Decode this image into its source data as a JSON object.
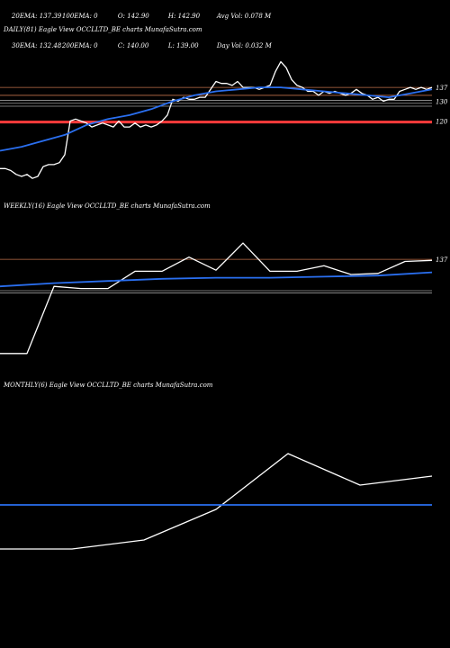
{
  "stats": {
    "ema20": "20EMA: 137.39",
    "ema100": "100EMA: 0",
    "open": "O: 142.90",
    "high": "H: 142.90",
    "avgvol": "Avg Vol: 0.078 M",
    "ema30": "30EMA: 132.48",
    "ema200": "200EMA: 0",
    "close": "C: 140.00",
    "low": "L: 139.00",
    "dayvol": "Day Vol: 0.032 M"
  },
  "panels": {
    "daily": "DAILY(81) Eagle  View  OCCLLTD_BE charts MunafaSutra.com",
    "weekly": "WEEKLY(16) Eagle  View  OCCLLTD_BE charts MunafaSutra.com",
    "monthly": "MONTHLY(6) Eagle  View  OCCLLTD_BE charts MunafaSutra.com"
  },
  "colors": {
    "price": "#ffffff",
    "ema": "#2a6ff0",
    "level_orange": "#c0704a",
    "level_red": "#ff3b3b",
    "level_gray": "#9a9a9a"
  },
  "chart_data": [
    {
      "type": "line",
      "panel": "daily",
      "title": "DAILY(81) Eagle  View  OCCLLTD_BE charts MunafaSutra.com",
      "ylim": [
        72,
        163
      ],
      "yticks": [
        137,
        130,
        120
      ],
      "levels": [
        {
          "value": 137,
          "color": "level_orange"
        },
        {
          "value": 133,
          "color": "level_orange"
        },
        {
          "value": 130.5,
          "color": "level_gray"
        },
        {
          "value": 129,
          "color": "level_gray"
        },
        {
          "value": 127.5,
          "color": "level_gray"
        },
        {
          "value": 119.5,
          "color": "level_red"
        }
      ],
      "series": [
        {
          "role": "price",
          "x": [
            0,
            1,
            2,
            3,
            4,
            5,
            6,
            7,
            8,
            9,
            10,
            11,
            12,
            13,
            14,
            15,
            16,
            17,
            18,
            19,
            20,
            21,
            22,
            23,
            24,
            25,
            26,
            27,
            28,
            29,
            30,
            31,
            32,
            33,
            34,
            35,
            36,
            37,
            38,
            39,
            40,
            41,
            42,
            43,
            44,
            45,
            46,
            47,
            48,
            49,
            50,
            51,
            52,
            53,
            54,
            55,
            56,
            57,
            58,
            59,
            60,
            61,
            62,
            63,
            64,
            65,
            66,
            67,
            68,
            69,
            70,
            71,
            72,
            73,
            74,
            75,
            76,
            77,
            78,
            79,
            80
          ],
          "y": [
            96,
            96,
            95,
            93,
            92,
            93,
            91,
            92,
            97,
            98,
            98,
            99,
            103,
            120,
            121,
            120,
            119,
            117,
            118,
            119,
            118,
            117,
            120,
            117,
            117,
            119,
            117,
            118,
            117,
            118,
            120,
            123,
            131,
            130,
            132,
            131,
            131,
            132,
            132,
            136,
            140,
            139,
            139,
            138,
            140,
            137,
            137,
            137,
            136,
            137,
            138,
            145,
            150,
            147,
            141,
            138,
            137,
            135,
            135,
            133,
            135,
            134,
            135,
            134,
            133,
            134,
            136,
            134,
            133,
            131,
            132,
            130,
            131,
            131,
            135,
            136,
            137,
            136,
            137,
            136,
            137
          ]
        },
        {
          "role": "ema",
          "x": [
            0,
            4,
            8,
            12,
            16,
            20,
            24,
            28,
            32,
            36,
            40,
            44,
            48,
            52,
            56,
            60,
            64,
            68,
            72,
            76,
            80
          ],
          "y": [
            105,
            107,
            110,
            113,
            118,
            121,
            123,
            126,
            130,
            133,
            135,
            136,
            137,
            137,
            136,
            135,
            134,
            133,
            132,
            134,
            136
          ]
        }
      ]
    },
    {
      "type": "line",
      "panel": "weekly",
      "title": "WEEKLY(16) Eagle  View  OCCLLTD_BE charts MunafaSutra.com",
      "ylim": [
        44,
        177
      ],
      "yticks": [
        137
      ],
      "levels": [
        {
          "value": 137,
          "color": "level_orange"
        },
        {
          "value": 108,
          "color": "level_gray"
        },
        {
          "value": 106,
          "color": "level_gray"
        }
      ],
      "series": [
        {
          "role": "price",
          "x": [
            0,
            1,
            2,
            3,
            4,
            5,
            6,
            7,
            8,
            9,
            10,
            11,
            12,
            13,
            14,
            15,
            16
          ],
          "y": [
            50,
            50,
            112,
            110,
            110,
            126,
            126,
            139,
            127,
            152,
            126,
            126,
            131,
            123,
            124,
            135,
            136
          ]
        },
        {
          "role": "ema",
          "x": [
            0,
            2,
            4,
            6,
            8,
            10,
            12,
            14,
            16
          ],
          "y": [
            112,
            115,
            117,
            119,
            120,
            120,
            121,
            122,
            125
          ]
        }
      ]
    },
    {
      "type": "line",
      "panel": "monthly",
      "title": "MONTHLY(6) Eagle  View  OCCLLTD_BE charts MunafaSutra.com",
      "ylim": [
        0,
        240
      ],
      "yticks": [],
      "levels": [],
      "series": [
        {
          "role": "price",
          "x": [
            0,
            1,
            2,
            3,
            4,
            5,
            6
          ],
          "y": [
            50,
            50,
            60,
            94,
            156,
            121,
            131
          ]
        },
        {
          "role": "ema",
          "x": [
            0,
            6
          ],
          "y": [
            99,
            99
          ]
        }
      ]
    }
  ]
}
